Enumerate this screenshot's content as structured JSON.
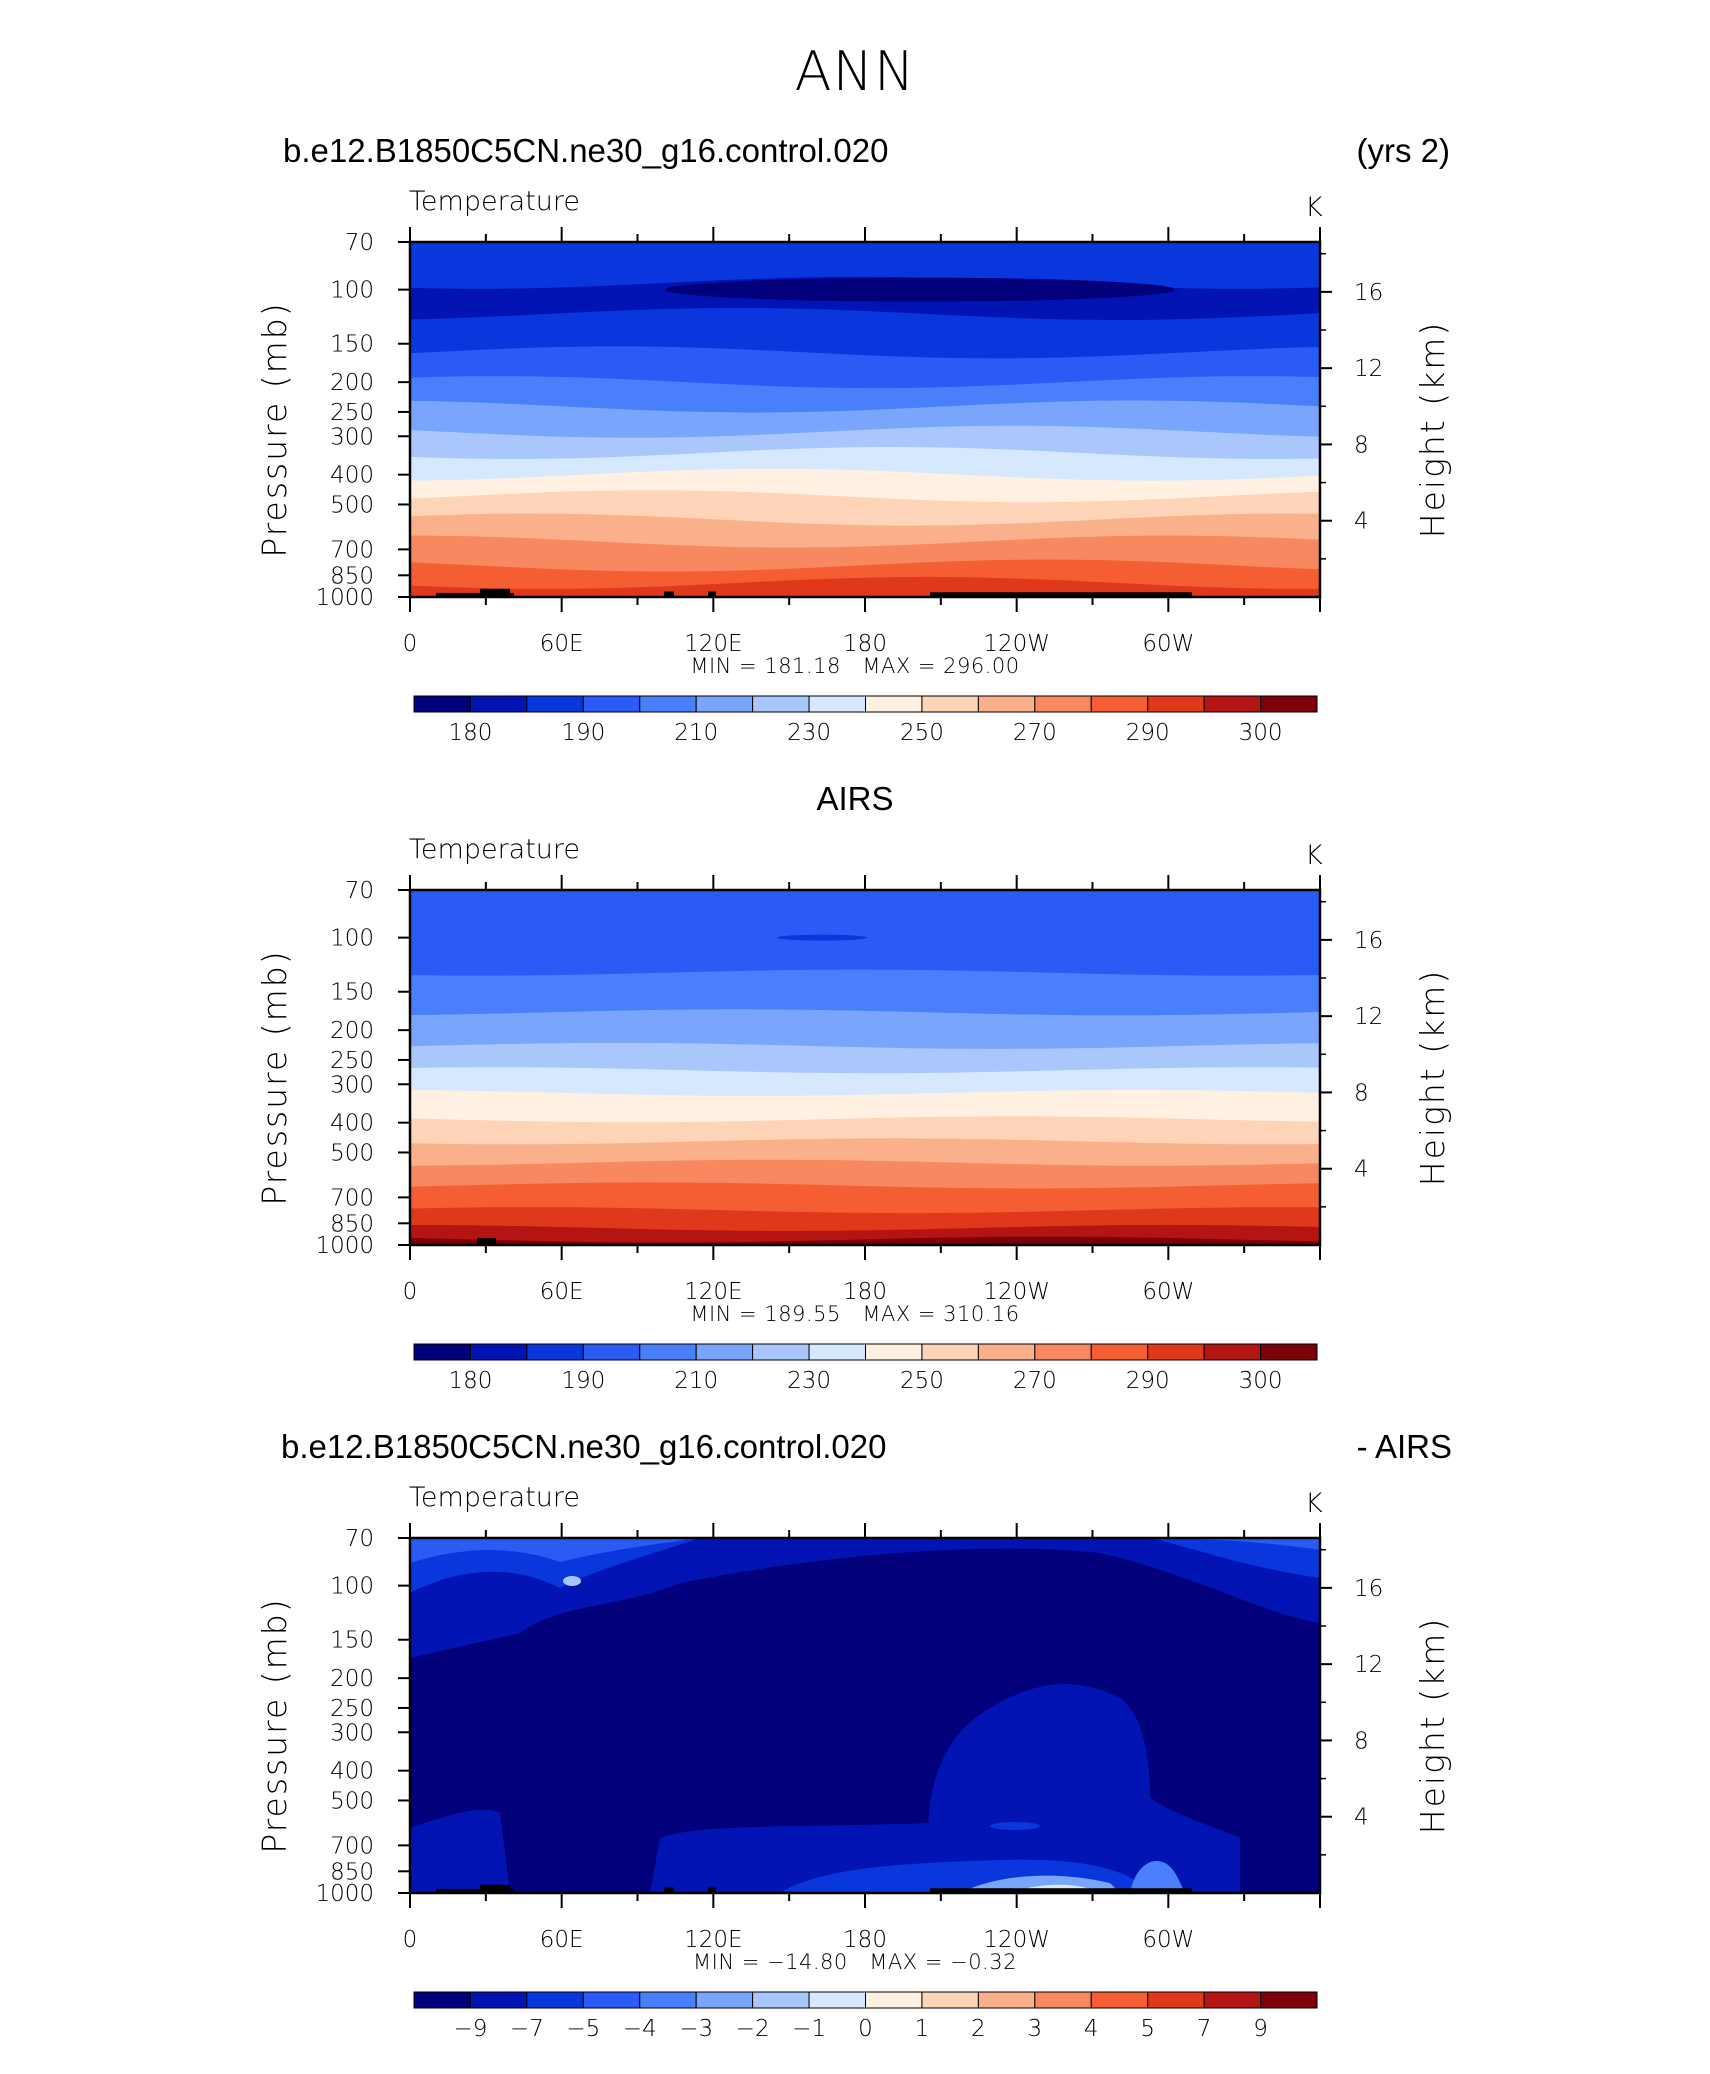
{
  "page": {
    "title": "ANN",
    "panels": [
      {
        "title_left": "b.e12.B1850C5CN.ne30_g16.control.020",
        "title_right": "(yrs 2)",
        "title_center": "",
        "field_label": "Temperature",
        "units": "K",
        "min_label": "MIN",
        "min_value": "181.18",
        "max_label": "MAX",
        "max_value": "296.00"
      },
      {
        "title_left": "",
        "title_right": "",
        "title_center": "AIRS",
        "field_label": "Temperature",
        "units": "K",
        "min_label": "MIN",
        "min_value": "189.55",
        "max_label": "MAX",
        "max_value": "310.16"
      },
      {
        "title_left": "b.e12.B1850C5CN.ne30_g16.control.020",
        "title_right": "- AIRS",
        "title_center": "",
        "field_label": "Temperature",
        "units": "K",
        "min_label": "MIN",
        "min_value": "−14.80",
        "max_label": "MAX",
        "max_value": "−0.32"
      }
    ]
  },
  "chart_data": [
    {
      "type": "heatmap",
      "title": "b.e12.B1850C5CN.ne30_g16.control.020",
      "subtitle": "Temperature",
      "units": "K",
      "ylabel": "Pressure (mb)",
      "y2label": "Height (km)",
      "x_ticks": [
        "0",
        "60E",
        "120E",
        "180",
        "120W",
        "60W"
      ],
      "y_ticks": [
        "70",
        "100",
        "150",
        "200",
        "250",
        "300",
        "400",
        "500",
        "700",
        "850",
        "1000"
      ],
      "y2_ticks": [
        "16",
        "12",
        "8",
        "4"
      ],
      "ylim": [
        1000,
        70
      ],
      "y_scale": "log",
      "colorbar_labels": [
        "180",
        "190",
        "210",
        "230",
        "250",
        "270",
        "290",
        "300"
      ],
      "colorbar_colors": [
        "#03007c",
        "#0314b4",
        "#0a36dd",
        "#2a5bf5",
        "#4a7ffb",
        "#7aa5fc",
        "#a9c7fd",
        "#d6e8fe",
        "#fff0e1",
        "#fdd4b8",
        "#fbb08c",
        "#f8885f",
        "#f45e32",
        "#e0381b",
        "#b41512",
        "#7c0009"
      ],
      "min": 181.18,
      "max": 296.0,
      "band_levels": [
        {
          "p": 70,
          "ci": 2
        },
        {
          "p": 95,
          "ci": 1
        },
        {
          "p": 120,
          "ci": 2
        },
        {
          "p": 160,
          "ci": 3
        },
        {
          "p": 200,
          "ci": 4
        },
        {
          "p": 240,
          "ci": 5
        },
        {
          "p": 290,
          "ci": 6
        },
        {
          "p": 340,
          "ci": 7
        },
        {
          "p": 400,
          "ci": 8
        },
        {
          "p": 470,
          "ci": 9
        },
        {
          "p": 560,
          "ci": 10
        },
        {
          "p": 660,
          "ci": 11
        },
        {
          "p": 790,
          "ci": 12
        },
        {
          "p": 900,
          "ci": 13
        }
      ]
    },
    {
      "type": "heatmap",
      "title": "AIRS",
      "subtitle": "Temperature",
      "units": "K",
      "ylabel": "Pressure (mb)",
      "y2label": "Height (km)",
      "x_ticks": [
        "0",
        "60E",
        "120E",
        "180",
        "120W",
        "60W"
      ],
      "y_ticks": [
        "70",
        "100",
        "150",
        "200",
        "250",
        "300",
        "400",
        "500",
        "700",
        "850",
        "1000"
      ],
      "y2_ticks": [
        "16",
        "12",
        "8",
        "4"
      ],
      "ylim": [
        1000,
        70
      ],
      "y_scale": "log",
      "colorbar_labels": [
        "180",
        "190",
        "210",
        "230",
        "250",
        "270",
        "290",
        "300"
      ],
      "colorbar_colors": [
        "#03007c",
        "#0314b4",
        "#0a36dd",
        "#2a5bf5",
        "#4a7ffb",
        "#7aa5fc",
        "#a9c7fd",
        "#d6e8fe",
        "#fff0e1",
        "#fdd4b8",
        "#fbb08c",
        "#f8885f",
        "#f45e32",
        "#e0381b",
        "#b41512",
        "#7c0009"
      ],
      "min": 189.55,
      "max": 310.16,
      "band_levels": [
        {
          "p": 70,
          "ci": 3
        },
        {
          "p": 130,
          "ci": 4
        },
        {
          "p": 175,
          "ci": 5
        },
        {
          "p": 225,
          "ci": 6
        },
        {
          "p": 270,
          "ci": 7
        },
        {
          "p": 320,
          "ci": 8
        },
        {
          "p": 390,
          "ci": 9
        },
        {
          "p": 460,
          "ci": 10
        },
        {
          "p": 540,
          "ci": 11
        },
        {
          "p": 640,
          "ci": 12
        },
        {
          "p": 770,
          "ci": 13
        },
        {
          "p": 880,
          "ci": 14
        },
        {
          "p": 960,
          "ci": 15
        }
      ]
    },
    {
      "type": "heatmap",
      "title": "b.e12.B1850C5CN.ne30_g16.control.020 - AIRS",
      "subtitle": "Temperature",
      "units": "K",
      "ylabel": "Pressure (mb)",
      "y2label": "Height (km)",
      "x_ticks": [
        "0",
        "60E",
        "120E",
        "180",
        "120W",
        "60W"
      ],
      "y_ticks": [
        "70",
        "100",
        "150",
        "200",
        "250",
        "300",
        "400",
        "500",
        "700",
        "850",
        "1000"
      ],
      "y2_ticks": [
        "16",
        "12",
        "8",
        "4"
      ],
      "ylim": [
        1000,
        70
      ],
      "y_scale": "log",
      "colorbar_labels": [
        "−9",
        "−7",
        "−5",
        "−4",
        "−3",
        "−2",
        "−1",
        "0",
        "1",
        "2",
        "3",
        "4",
        "5",
        "7",
        "9"
      ],
      "colorbar_colors": [
        "#03007c",
        "#0314b4",
        "#0a36dd",
        "#2a5bf5",
        "#4a7ffb",
        "#7aa5fc",
        "#a9c7fd",
        "#d6e8fe",
        "#fff0e1",
        "#fdd4b8",
        "#fbb08c",
        "#f8885f",
        "#f45e32",
        "#e0381b",
        "#b41512",
        "#7c0009"
      ],
      "min": -14.8,
      "max": -0.32
    }
  ]
}
